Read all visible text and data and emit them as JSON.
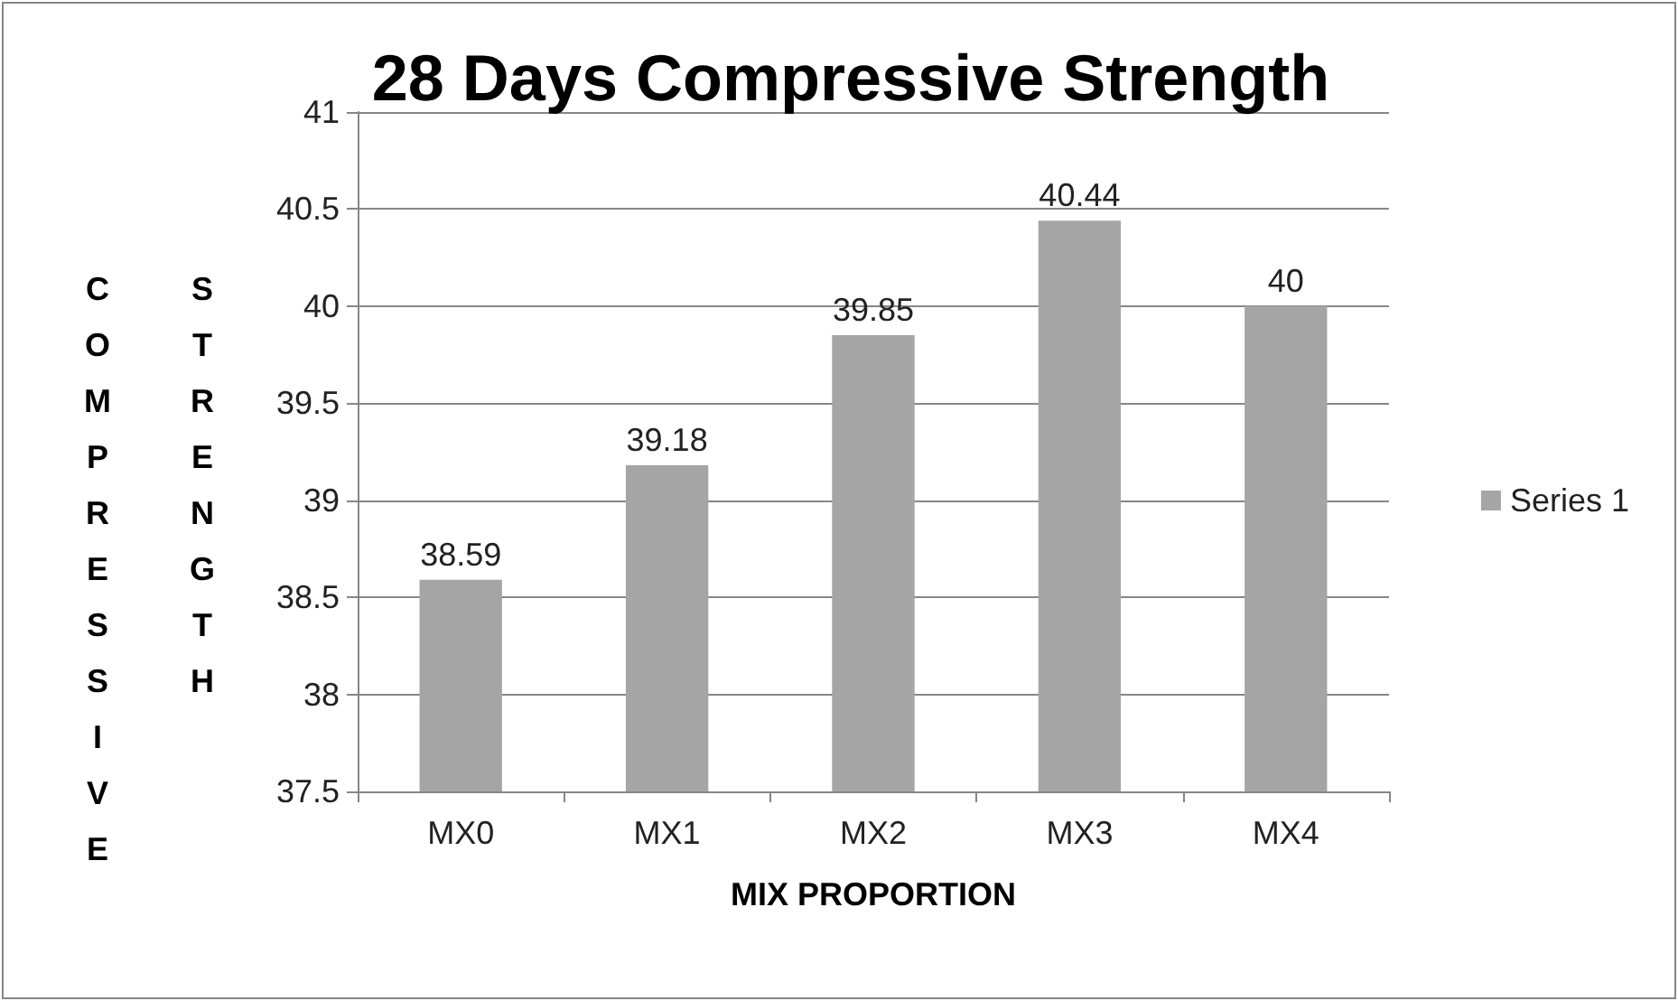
{
  "chart_data": {
    "type": "bar",
    "title": "28 Days Compressive Strength",
    "xlabel": "MIX PROPORTION",
    "ylabel": "COMPRESSIVE STRENGTH",
    "categories": [
      "MX0",
      "MX1",
      "MX2",
      "MX3",
      "MX4"
    ],
    "series": [
      {
        "name": "Series 1",
        "color": "#a5a5a5",
        "values": [
          38.59,
          39.18,
          39.85,
          40.44,
          40
        ]
      }
    ],
    "ylim": [
      37.5,
      41
    ],
    "yticks": [
      37.5,
      38,
      38.5,
      39,
      39.5,
      40,
      40.5,
      41
    ],
    "grid": "y",
    "legend": "right",
    "data_labels": true
  }
}
